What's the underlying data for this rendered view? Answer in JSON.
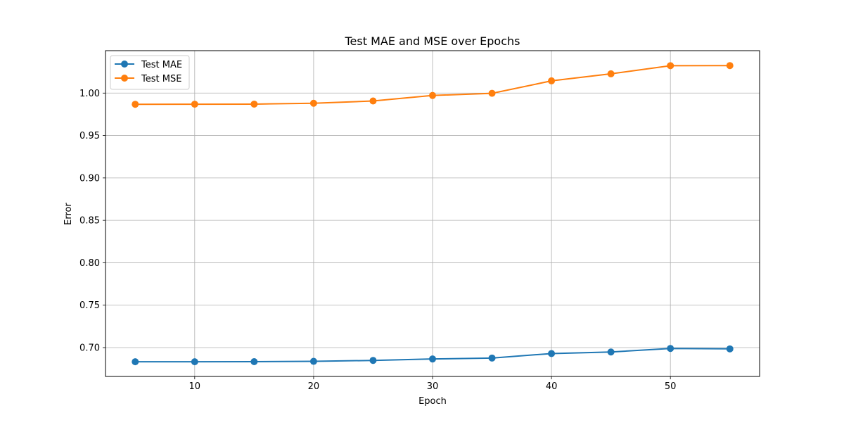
{
  "chart_data": {
    "type": "line",
    "title": "Test MAE and MSE over Epochs",
    "xlabel": "Epoch",
    "ylabel": "Error",
    "x": [
      5,
      10,
      15,
      20,
      25,
      30,
      35,
      40,
      45,
      50,
      55
    ],
    "series": [
      {
        "name": "Test MAE",
        "color": "#1f77b4",
        "marker": "circle",
        "values": [
          0.6833,
          0.6833,
          0.6834,
          0.6838,
          0.6849,
          0.6866,
          0.6877,
          0.693,
          0.6948,
          0.699,
          0.6985
        ]
      },
      {
        "name": "Test MSE",
        "color": "#ff7f0e",
        "marker": "circle",
        "values": [
          0.9868,
          0.9869,
          0.987,
          0.988,
          0.9907,
          0.9972,
          0.9997,
          1.0144,
          1.0227,
          1.0323,
          1.0324
        ]
      }
    ],
    "xlim": [
      2.5,
      57.5
    ],
    "ylim": [
      0.666,
      1.05
    ],
    "xticks": [
      10,
      20,
      30,
      40,
      50
    ],
    "xtick_labels": [
      "10",
      "20",
      "30",
      "40",
      "50"
    ],
    "yticks": [
      0.7,
      0.75,
      0.8,
      0.85,
      0.9,
      0.95,
      1.0
    ],
    "ytick_labels": [
      "0.70",
      "0.75",
      "0.80",
      "0.85",
      "0.90",
      "0.95",
      "1.00"
    ],
    "grid": true,
    "legend_position": "upper-left"
  }
}
